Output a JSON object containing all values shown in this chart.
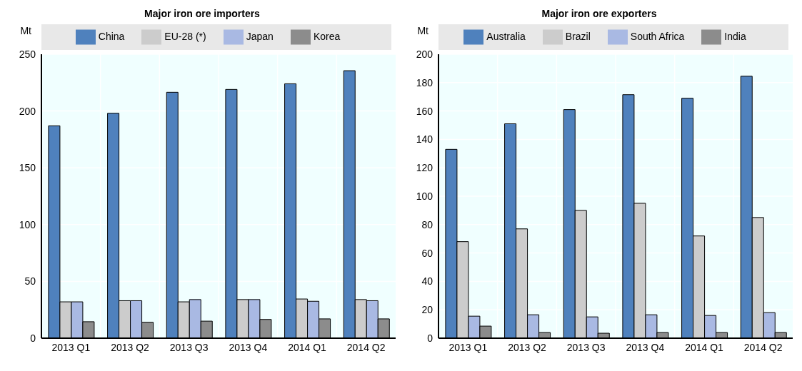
{
  "chart_data": [
    {
      "type": "bar",
      "title": "Major iron ore importers",
      "ylabel": "Mt",
      "categories": [
        "2013 Q1",
        "2013 Q2",
        "2013 Q3",
        "2013 Q4",
        "2014 Q1",
        "2014 Q2"
      ],
      "series": [
        {
          "name": "China",
          "color": "#4f81bd",
          "values": [
            187,
            198,
            216.5,
            219,
            224,
            235.5
          ]
        },
        {
          "name": "EU-28 (*)",
          "color": "#cccccc",
          "values": [
            32,
            33,
            32,
            34,
            34.5,
            34
          ]
        },
        {
          "name": "Japan",
          "color": "#a9b9e3",
          "values": [
            32,
            33,
            34,
            34,
            32.5,
            33
          ]
        },
        {
          "name": "Korea",
          "color": "#8c8c8c",
          "values": [
            14.5,
            14,
            15,
            16.5,
            17,
            17
          ]
        }
      ],
      "ylim": [
        0,
        250
      ],
      "yticks": [
        0,
        50,
        100,
        150,
        200,
        250
      ],
      "grid": true,
      "legend": "top"
    },
    {
      "type": "bar",
      "title": "Major iron ore exporters",
      "ylabel": "Mt",
      "categories": [
        "2013 Q1",
        "2013 Q2",
        "2013 Q3",
        "2013 Q4",
        "2014 Q1",
        "2014 Q2"
      ],
      "series": [
        {
          "name": "Australia",
          "color": "#4f81bd",
          "values": [
            133,
            151,
            161,
            171.5,
            169,
            184.5
          ]
        },
        {
          "name": "Brazil",
          "color": "#cccccc",
          "values": [
            68,
            77,
            90,
            95,
            72,
            85
          ]
        },
        {
          "name": "South Africa",
          "color": "#a9b9e3",
          "values": [
            15.5,
            16.5,
            15,
            16.5,
            16,
            18
          ]
        },
        {
          "name": "India",
          "color": "#8c8c8c",
          "values": [
            8.5,
            4,
            3.5,
            4,
            4,
            4
          ]
        }
      ],
      "ylim": [
        0,
        200
      ],
      "yticks": [
        0,
        20,
        40,
        60,
        80,
        100,
        120,
        140,
        160,
        180,
        200
      ],
      "grid": true,
      "legend": "top"
    }
  ]
}
